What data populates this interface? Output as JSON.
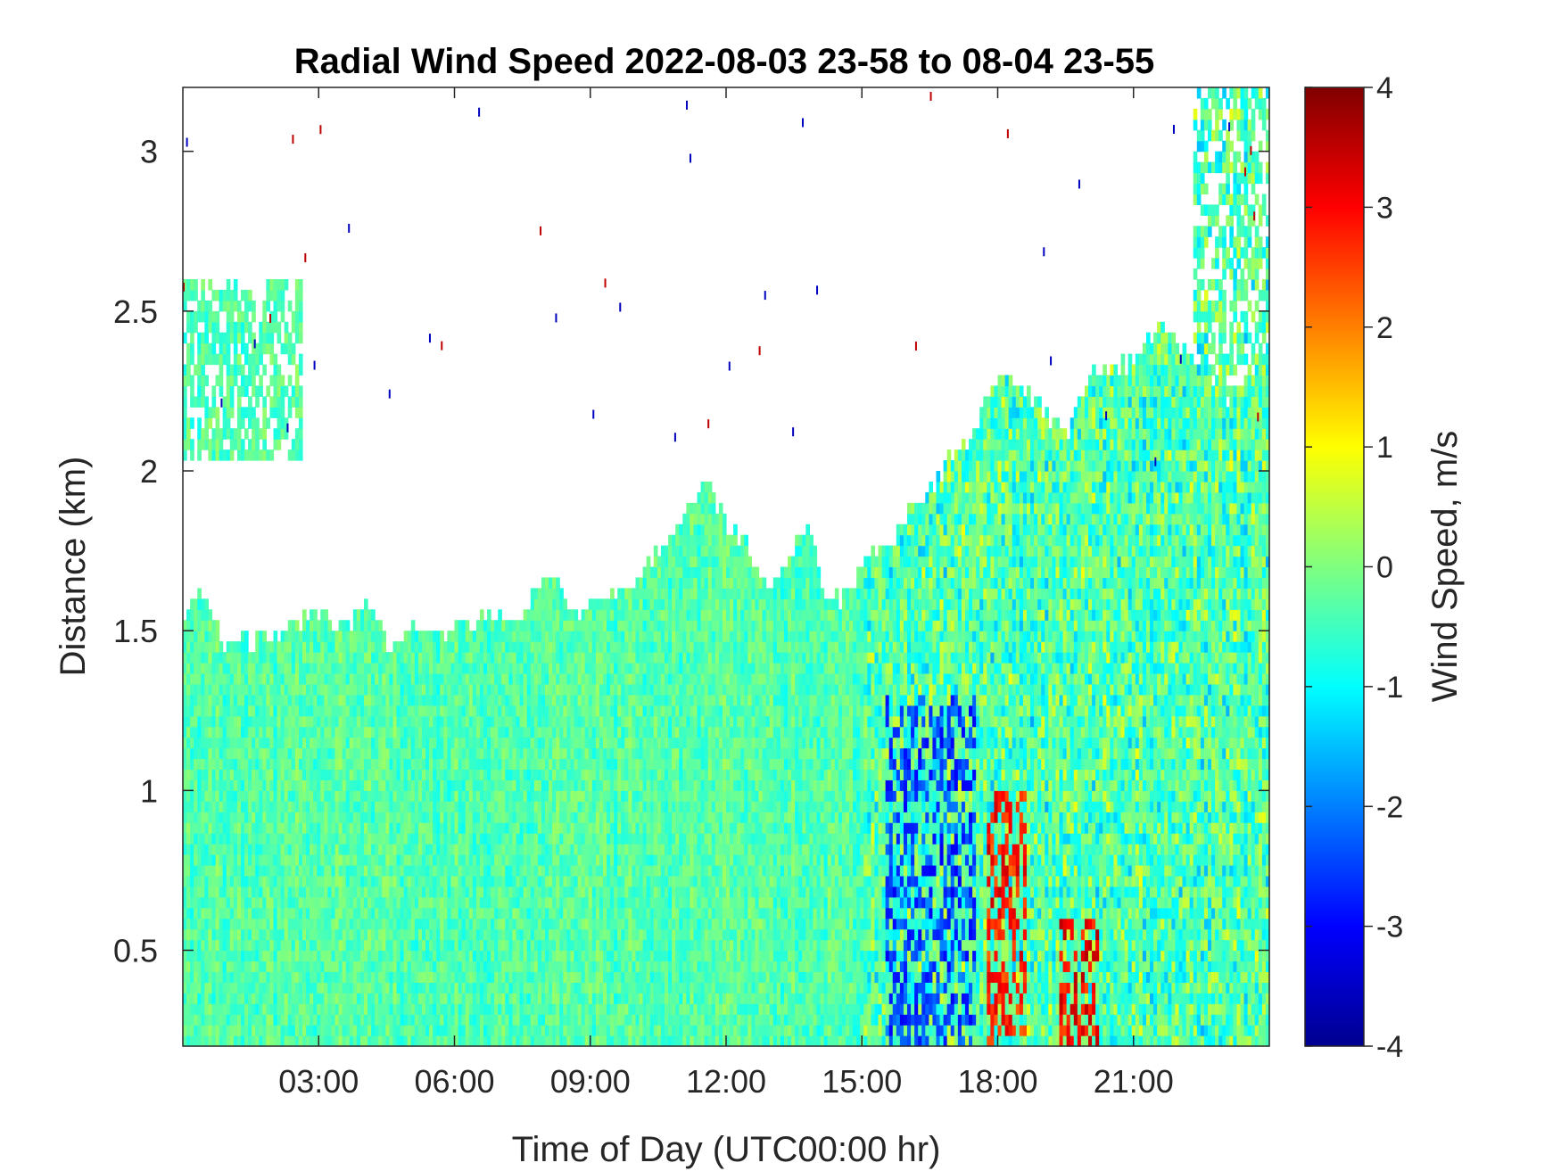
{
  "chart_data": {
    "type": "heatmap",
    "title": "Radial Wind Speed 2022-08-03 23-58 to 08-04 23-55",
    "xlabel": "Time of Day (UTC00:00 hr)",
    "ylabel": "Distance (km)",
    "xlim": [
      0,
      24
    ],
    "ylim": [
      0.2,
      3.2
    ],
    "x_ticks": [
      3,
      6,
      9,
      12,
      15,
      18,
      21
    ],
    "x_tick_labels": [
      "03:00",
      "06:00",
      "09:00",
      "12:00",
      "15:00",
      "18:00",
      "21:00"
    ],
    "y_ticks": [
      0.5,
      1,
      1.5,
      2,
      2.5,
      3
    ],
    "y_tick_labels": [
      "0.5",
      "1",
      "1.5",
      "2",
      "2.5",
      "3"
    ],
    "colorbar": {
      "label": "Wind Speed, m/s",
      "colormap": "jet",
      "range": [
        -4,
        4
      ],
      "ticks": [
        -4,
        -3,
        -2,
        -1,
        0,
        1,
        2,
        3,
        4
      ],
      "tick_labels": [
        "-4",
        "-3",
        "-2",
        "-1",
        "0",
        "1",
        "2",
        "3",
        "4"
      ]
    },
    "data_top_km": {
      "time_hr": [
        0,
        0.3,
        1,
        2,
        3,
        3.5,
        4.2,
        4.5,
        5,
        6,
        6.8,
        7.5,
        8,
        8.7,
        9,
        10,
        10.5,
        11,
        11.5,
        12,
        12.5,
        13,
        13.8,
        14.2,
        14.5,
        15,
        15.5,
        16,
        16.8,
        17.3,
        18,
        19,
        19.5,
        20,
        21,
        21.5,
        22,
        22.5,
        23,
        23.5,
        24
      ],
      "distance_km": [
        1.5,
        1.65,
        1.45,
        1.48,
        1.55,
        1.5,
        1.6,
        1.45,
        1.5,
        1.5,
        1.55,
        1.55,
        1.7,
        1.55,
        1.6,
        1.65,
        1.75,
        1.85,
        1.98,
        1.85,
        1.75,
        1.6,
        1.85,
        1.62,
        1.6,
        1.7,
        1.75,
        1.85,
        2.0,
        2.1,
        2.3,
        2.2,
        2.1,
        2.3,
        2.35,
        2.45,
        2.4,
        2.3,
        2.2,
        2.3,
        2.4
      ]
    },
    "upper_patches": [
      {
        "time_hr": [
          0,
          2.6
        ],
        "distance_km": [
          2.05,
          2.6
        ]
      },
      {
        "time_hr": [
          22.3,
          24
        ],
        "distance_km": [
          2.1,
          3.2
        ]
      }
    ],
    "notes_regions": [
      {
        "time_hr": [
          15.5,
          17.5
        ],
        "distance_km": [
          0.2,
          1.3
        ],
        "speed_ms": -2.5
      },
      {
        "time_hr": [
          17.8,
          18.6
        ],
        "distance_km": [
          0.2,
          1.0
        ],
        "speed_ms": 2.8
      },
      {
        "time_hr": [
          19.4,
          20.2
        ],
        "distance_km": [
          0.2,
          0.6
        ],
        "speed_ms": 3.0
      }
    ]
  }
}
